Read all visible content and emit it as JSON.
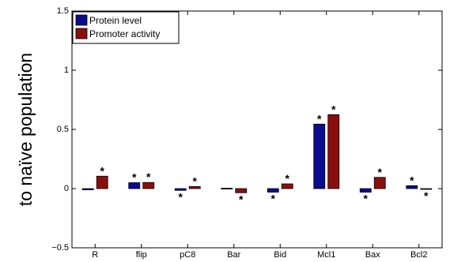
{
  "chart_data": {
    "type": "bar",
    "title": "",
    "xlabel": "",
    "ylabel": "to naïve population",
    "ylim": [
      -0.5,
      1.5
    ],
    "yticks": [
      -0.5,
      0,
      0.5,
      1,
      1.5
    ],
    "ytick_labels": [
      "−0.5",
      "0",
      "0.5",
      "1",
      "1.5"
    ],
    "grid": false,
    "legend_position": "top-left",
    "categories": [
      "R",
      "flip",
      "pC8",
      "Bar",
      "Bid",
      "Mcl1",
      "Bax",
      "Bcl2"
    ],
    "series": [
      {
        "name": "Protein level",
        "color": "#0b0b8f",
        "values": [
          -0.01,
          0.05,
          -0.015,
          0.003,
          -0.03,
          0.545,
          -0.03,
          0.025
        ],
        "significant": [
          false,
          true,
          true,
          false,
          true,
          true,
          true,
          true
        ]
      },
      {
        "name": "Promoter activity",
        "color": "#8b0e0e",
        "values": [
          0.105,
          0.052,
          0.018,
          -0.035,
          0.04,
          0.625,
          0.095,
          -0.005
        ],
        "significant": [
          true,
          true,
          true,
          true,
          true,
          true,
          true,
          true
        ]
      }
    ],
    "annotation_symbol": "*"
  }
}
